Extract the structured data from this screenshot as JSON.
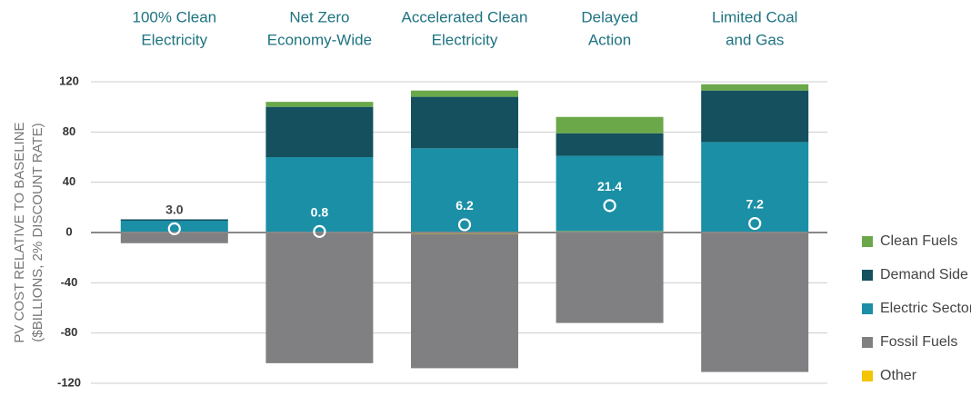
{
  "chart_data": {
    "type": "stacked_bar",
    "categories": [
      [
        "100% Clean",
        "Electricity"
      ],
      [
        "Net Zero",
        "Economy-Wide"
      ],
      [
        "Accelerated Clean",
        "Electricity"
      ],
      [
        "Delayed",
        "Action"
      ],
      [
        "Limited Coal",
        "and Gas"
      ]
    ],
    "y_label": [
      "PV COST RELATIVE TO BASELINE",
      "($BILLIONS, 2% DISCOUNT RATE)"
    ],
    "ylim": [
      -120,
      120
    ],
    "yticks": [
      120,
      80,
      40,
      0,
      -40,
      -80,
      -120
    ],
    "grid": true,
    "series": [
      {
        "name": "Clean Fuels",
        "color": "#6aa84a",
        "values": [
          0,
          4,
          5,
          13,
          5
        ]
      },
      {
        "name": "Demand Side",
        "color": "#14505e",
        "values": [
          0.5,
          40,
          41,
          18,
          41
        ]
      },
      {
        "name": "Electric Sector",
        "color": "#1b8fa6",
        "values": [
          10,
          60,
          67,
          60,
          72
        ]
      },
      {
        "name": "Fossil Fuels",
        "color": "#808083",
        "values": [
          -8.5,
          -104,
          -107,
          -72,
          -111
        ]
      },
      {
        "name": "Other",
        "color": "#f5c400",
        "values": [
          0,
          0,
          -1,
          1,
          0
        ]
      }
    ],
    "net": {
      "values": [
        3.0,
        0.8,
        6.2,
        21.4,
        7.2
      ],
      "value_labels": [
        "3.0",
        "0.8",
        "6.2",
        "21.4",
        "7.2"
      ]
    },
    "legend": "right"
  }
}
